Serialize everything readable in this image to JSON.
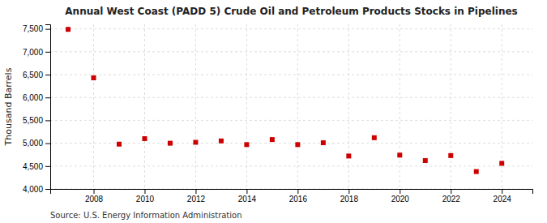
{
  "chart_data": {
    "type": "scatter",
    "title": "Annual West Coast (PADD 5) Crude Oil and Petroleum Products Stocks in Pipelines",
    "y_label": "Thousand Barrels",
    "annotations": [
      "Source: U.S. Energy Information Administration"
    ],
    "x": [
      2007,
      2008,
      2009,
      2010,
      2011,
      2012,
      2013,
      2014,
      2015,
      2016,
      2017,
      2018,
      2019,
      2020,
      2021,
      2022,
      2023,
      2024
    ],
    "values": [
      7490,
      6430,
      4980,
      5100,
      5000,
      5020,
      5050,
      4970,
      5080,
      4970,
      5010,
      4720,
      5120,
      4740,
      4620,
      4730,
      4380,
      4560
    ],
    "color": "#cc0000",
    "marker": "square",
    "grid": true,
    "xlim": [
      2006.3,
      2025.2
    ],
    "xticks": [
      2008,
      2010,
      2012,
      2014,
      2016,
      2018,
      2020,
      2022,
      2024
    ],
    "ylim": [
      4000,
      7600
    ],
    "yticks": [
      {
        "value": 4000,
        "label": "4,000"
      },
      {
        "value": 4500,
        "label": "4,500"
      },
      {
        "value": 5000,
        "label": "5,000"
      },
      {
        "value": 5500,
        "label": "5,500"
      },
      {
        "value": 6000,
        "label": "6,000"
      },
      {
        "value": 6500,
        "label": "6,500"
      },
      {
        "value": 7000,
        "label": "7,000"
      },
      {
        "value": 7500,
        "label": "7,500"
      }
    ]
  }
}
